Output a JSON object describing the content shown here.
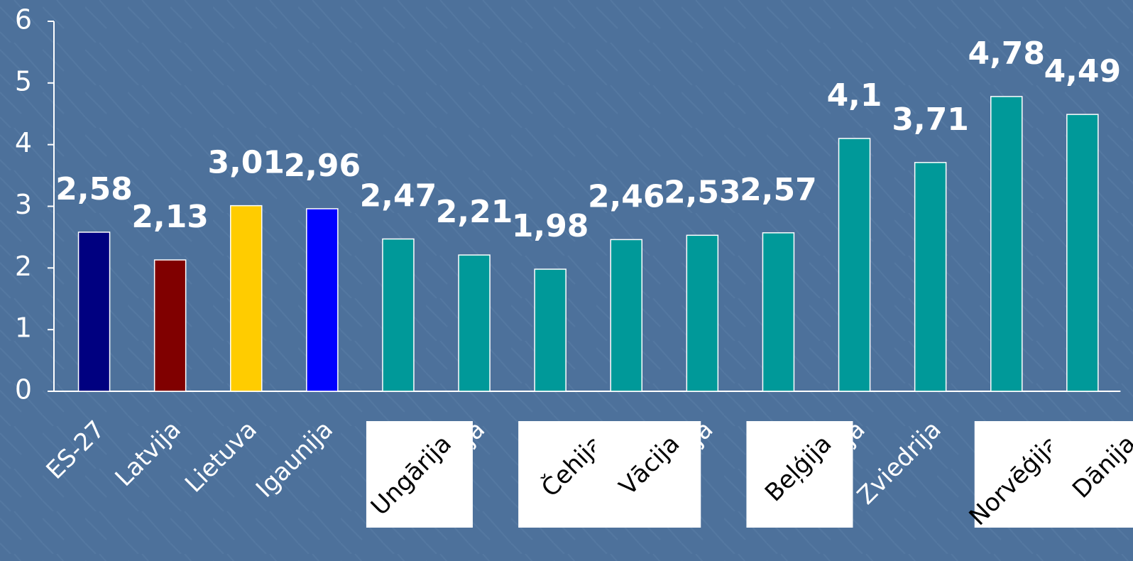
{
  "chart_data": {
    "type": "bar",
    "categories": [
      "ES-27",
      "Latvija",
      "Lietuva",
      "Igaunija",
      "Ungārija",
      "Polija",
      "Čehija",
      "Vācija",
      "Austrija",
      "Beļģija",
      "Somija",
      "Zviedrija",
      "Norvēģija",
      "Dānija"
    ],
    "values": [
      2.58,
      2.13,
      3.01,
      2.96,
      2.47,
      2.21,
      1.98,
      2.46,
      2.53,
      2.57,
      4.1,
      3.71,
      4.78,
      4.49
    ],
    "value_labels": [
      "2,58",
      "2,13",
      "3,01",
      "2,96",
      "2,47",
      "2,21",
      "1,98",
      "2,46",
      "2,53",
      "2,57",
      "4,1",
      "3,71",
      "4,78",
      "4,49"
    ],
    "colors": [
      "#000080",
      "#800000",
      "#ffcc00",
      "#0000ff",
      "#009999",
      "#009999",
      "#009999",
      "#009999",
      "#009999",
      "#009999",
      "#009999",
      "#009999",
      "#009999",
      "#009999"
    ],
    "boxed_labels": [
      false,
      false,
      false,
      false,
      true,
      false,
      true,
      true,
      false,
      true,
      false,
      false,
      true,
      true
    ],
    "ylim": [
      0,
      6
    ],
    "yticks": [
      0,
      1,
      2,
      3,
      4,
      5,
      6
    ],
    "grid": false
  }
}
